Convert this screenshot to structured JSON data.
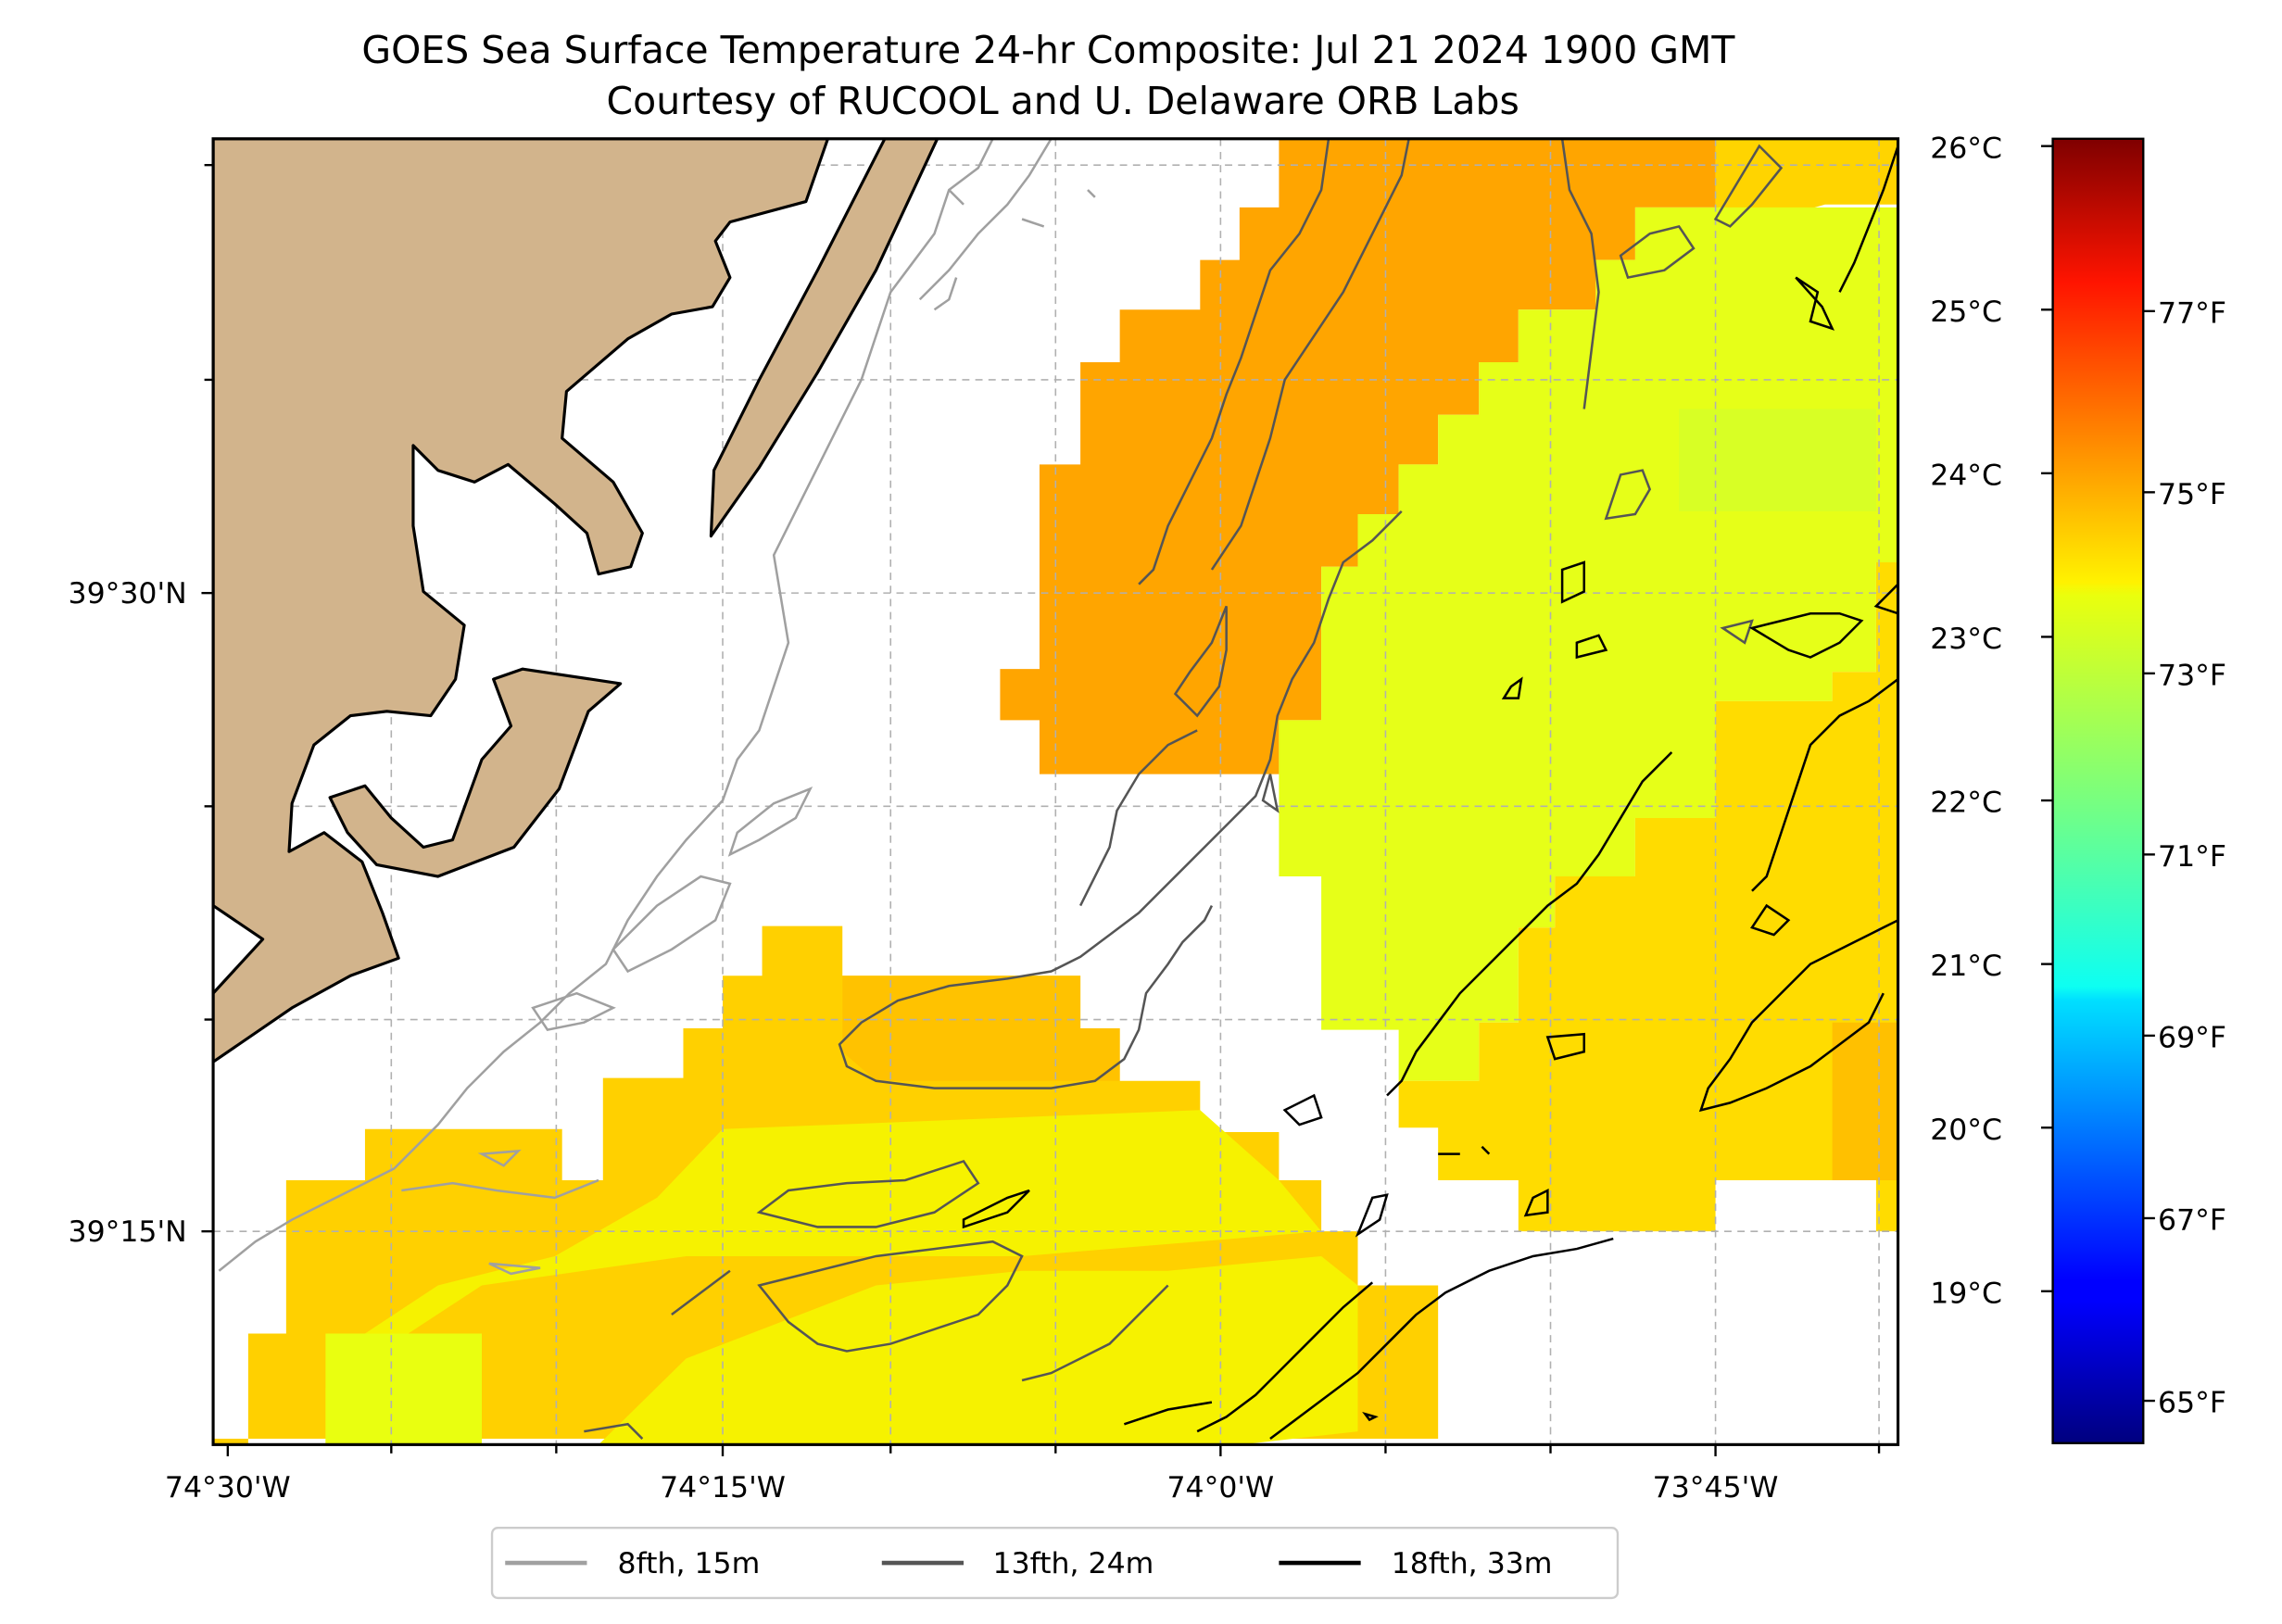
{
  "title": {
    "line1": "GOES Sea Surface Temperature 24-hr Composite: Jul 21 2024 1900 GMT",
    "line2": "Courtesy of RUCOOL and U. Delaware ORB Labs"
  },
  "map": {
    "lon_ticks": [
      "74°30'W",
      "74°15'W",
      "74°0'W",
      "73°45'W"
    ],
    "lat_ticks": [
      "39°30'N",
      "39°15'N"
    ],
    "land_color": "#d2b48c",
    "no_data_color": "#ffffff"
  },
  "colorbar": {
    "colormap": "jet",
    "range_c": [
      18,
      26
    ],
    "celsius_ticks": [
      "26°C",
      "25°C",
      "24°C",
      "23°C",
      "22°C",
      "21°C",
      "20°C",
      "19°C"
    ],
    "fahrenheit_ticks": [
      "77°F",
      "75°F",
      "73°F",
      "71°F",
      "69°F",
      "67°F",
      "65°F"
    ]
  },
  "legend": {
    "items": [
      {
        "label": "8fth, 15m",
        "color": "#a0a0a0"
      },
      {
        "label": "13fth, 24m",
        "color": "#555555"
      },
      {
        "label": "18fth, 33m",
        "color": "#000000"
      }
    ]
  }
}
